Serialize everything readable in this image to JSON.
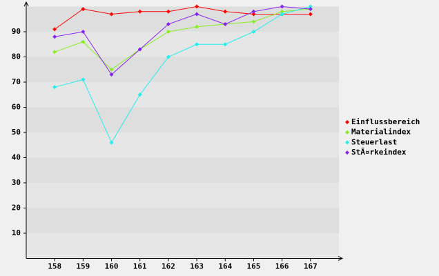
{
  "chart_data": {
    "type": "line",
    "categories": [
      "158",
      "159",
      "160",
      "161",
      "162",
      "163",
      "164",
      "165",
      "166",
      "167"
    ],
    "series": [
      {
        "name": "Einflussbereich",
        "color": "#ff0000",
        "values": [
          91,
          99,
          97,
          98,
          98,
          100,
          98,
          97,
          97,
          97
        ]
      },
      {
        "name": "Materialindex",
        "color": "#88ee22",
        "values": [
          82,
          86,
          75,
          83,
          90,
          92,
          93,
          94,
          98,
          99
        ]
      },
      {
        "name": "Steuerlast",
        "color": "#22eeee",
        "values": [
          68,
          71,
          46,
          65,
          80,
          85,
          85,
          90,
          97,
          100
        ]
      },
      {
        "name": "StÃ¤rkeindex",
        "color": "#8822ee",
        "values": [
          88,
          90,
          73,
          83,
          93,
          97,
          93,
          98,
          100,
          99
        ]
      }
    ],
    "ylim": [
      0,
      100
    ],
    "yticks": [
      10,
      20,
      30,
      40,
      50,
      60,
      70,
      80,
      90
    ],
    "grid": true,
    "legend": "right"
  }
}
